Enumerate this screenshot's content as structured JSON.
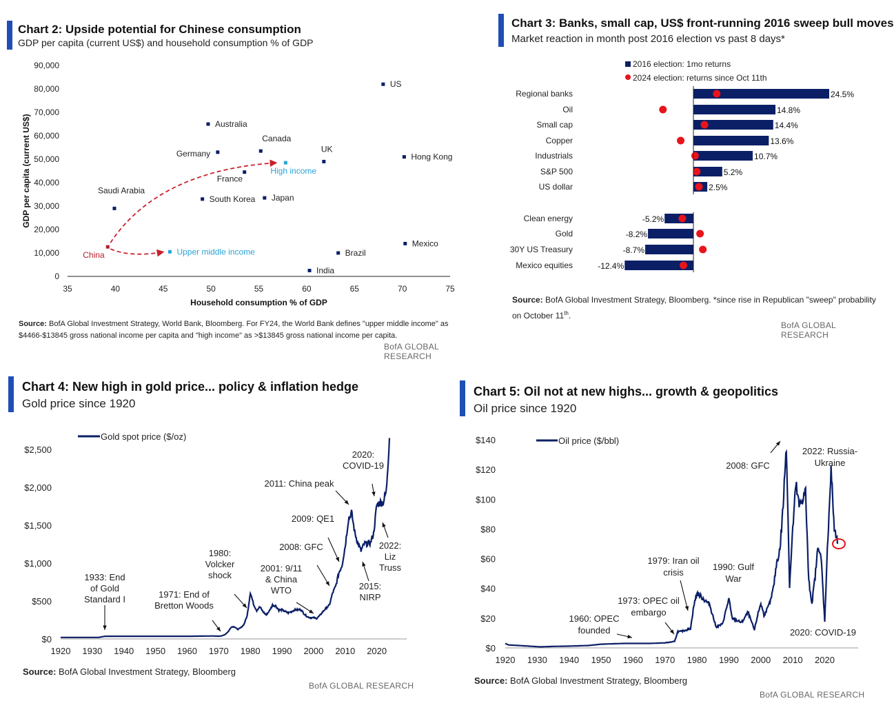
{
  "brand": "BofA GLOBAL RESEARCH",
  "colors": {
    "navy": "#0b1f66",
    "accent": "#1f4fb5",
    "red": "#e8141b",
    "china": "#b3202b",
    "income": "#2aa3d8",
    "dashed": "#c8202b"
  },
  "chart2": {
    "title": "Chart 2: Upside potential for Chinese consumption",
    "subtitle": "GDP per capita (current US$) and household consumption % of GDP",
    "source_label": "Source:",
    "source_text": " BofA Global Investment Strategy, World Bank, Bloomberg. For FY24, the World Bank defines \"upper middle income\" as $4466-$13845 gross national income per capita and \"high income\" as >$13845 gross national income per capita.",
    "chart_data": {
      "type": "scatter",
      "xlabel": "Household consumption % of GDP",
      "ylabel": "GDP per capita (current US$)",
      "xlim": [
        35,
        75
      ],
      "ylim": [
        0,
        90000
      ],
      "x_ticks": [
        "35",
        "40",
        "45",
        "50",
        "55",
        "60",
        "65",
        "70",
        "75"
      ],
      "y_ticks": [
        "0",
        "10,000",
        "20,000",
        "30,000",
        "40,000",
        "50,000",
        "60,000",
        "70,000",
        "80,000",
        "90,000"
      ],
      "points": [
        {
          "label": "US",
          "x": 68,
          "y": 82000
        },
        {
          "label": "Australia",
          "x": 49.7,
          "y": 65000
        },
        {
          "label": "Canada",
          "x": 55.2,
          "y": 53500
        },
        {
          "label": "Germany",
          "x": 50.7,
          "y": 53000
        },
        {
          "label": "UK",
          "x": 61.8,
          "y": 49000
        },
        {
          "label": "Hong Kong",
          "x": 70.2,
          "y": 51000
        },
        {
          "label": "France",
          "x": 53.5,
          "y": 44500
        },
        {
          "label": "Saudi Arabia",
          "x": 39.9,
          "y": 29000
        },
        {
          "label": "South Korea",
          "x": 49.1,
          "y": 33000
        },
        {
          "label": "Japan",
          "x": 55.6,
          "y": 33500
        },
        {
          "label": "Mexico",
          "x": 70.3,
          "y": 14000
        },
        {
          "label": "Brazil",
          "x": 63.3,
          "y": 10000
        },
        {
          "label": "India",
          "x": 60.3,
          "y": 2500
        },
        {
          "label": "China",
          "x": 39.2,
          "y": 12600,
          "color": "china"
        },
        {
          "label": "Upper middle income",
          "x": 45.7,
          "y": 10500,
          "color": "income"
        },
        {
          "label": "High income",
          "x": 57.8,
          "y": 48500,
          "color": "income"
        }
      ]
    }
  },
  "chart3": {
    "title": "Chart 3: Banks, small cap, US$ front-running 2016 sweep bull moves",
    "subtitle": "Market reaction in month post 2016 election vs past 8 days*",
    "source_label": "Source:",
    "source_text": " BofA Global Investment Strategy, Bloomberg. *since rise in Republican \"sweep\" probability on October 11",
    "source_sup": "th",
    "source_end": ".",
    "chart_data": {
      "type": "bar",
      "orientation": "horizontal",
      "xlim": [
        -12.4,
        24.5
      ],
      "categories": [
        "Regional banks",
        "Oil",
        "Small cap",
        "Copper",
        "Industrials",
        "S&P 500",
        "US dollar",
        "Clean energy",
        "Gold",
        "30Y US Treasury",
        "Mexico equities"
      ],
      "series": [
        {
          "name": "2016 election: 1mo returns",
          "values": [
            24.5,
            14.8,
            14.4,
            13.6,
            10.7,
            5.2,
            2.5,
            -5.2,
            -8.2,
            -8.7,
            -12.4
          ]
        },
        {
          "name": "2024 election: returns since Oct 11th",
          "values": [
            4.2,
            -5.5,
            2.0,
            -2.3,
            0.3,
            0.6,
            1.0,
            -2.0,
            1.2,
            1.7,
            -1.8
          ]
        }
      ],
      "value_labels": [
        "24.5%",
        "14.8%",
        "14.4%",
        "13.6%",
        "10.7%",
        "5.2%",
        "2.5%",
        "-5.2%",
        "-8.2%",
        "-8.7%",
        "-12.4%"
      ]
    }
  },
  "chart4": {
    "title": "Chart 4: New high in gold price... policy & inflation hedge",
    "subtitle": "Gold price since 1920",
    "source_label": "Source:",
    "source_text": " BofA Global Investment Strategy, Bloomberg",
    "chart_data": {
      "type": "line",
      "legend": "Gold spot price ($/oz)",
      "xlim": [
        1920,
        2024
      ],
      "ylim": [
        0,
        2700
      ],
      "x_ticks": [
        "1920",
        "1930",
        "1940",
        "1950",
        "1960",
        "1970",
        "1980",
        "1990",
        "2000",
        "2010",
        "2020"
      ],
      "y_ticks": [
        "$0",
        "$500",
        "$1,000",
        "$1,500",
        "$2,000",
        "$2,500"
      ],
      "series": [
        {
          "name": "Gold spot price ($/oz)",
          "x": [
            1920,
            1925,
            1932,
            1934,
            1940,
            1950,
            1960,
            1968,
            1970,
            1971,
            1972,
            1973,
            1974,
            1975,
            1976,
            1977,
            1978,
            1979,
            1980,
            1981,
            1982,
            1983,
            1984,
            1985,
            1986,
            1987,
            1988,
            1989,
            1990,
            1991,
            1992,
            1993,
            1994,
            1995,
            1996,
            1997,
            1998,
            1999,
            2000,
            2001,
            2002,
            2003,
            2004,
            2005,
            2006,
            2007,
            2008,
            2009,
            2010,
            2011,
            2012,
            2013,
            2014,
            2015,
            2016,
            2017,
            2018,
            2019,
            2020,
            2021,
            2022,
            2023,
            2024
          ],
          "y": [
            20,
            20,
            20,
            35,
            35,
            35,
            35,
            39,
            36,
            41,
            58,
            97,
            159,
            161,
            125,
            148,
            193,
            307,
            615,
            460,
            376,
            424,
            361,
            317,
            368,
            447,
            437,
            381,
            383,
            362,
            344,
            360,
            384,
            384,
            388,
            331,
            294,
            279,
            280,
            271,
            310,
            363,
            409,
            444,
            603,
            695,
            872,
            972,
            1224,
            1571,
            1669,
            1411,
            1266,
            1160,
            1251,
            1257,
            1268,
            1393,
            1770,
            1799,
            1800,
            1943,
            2650
          ]
        }
      ],
      "annotations": [
        {
          "year": "1933",
          "text": "1933: End of Gold Standard I"
        },
        {
          "year": "1971",
          "text": "1971: End of Bretton Woods"
        },
        {
          "year": "1980",
          "text": "1980: Volcker shock"
        },
        {
          "year": "2001",
          "text": "2001: 9/11 & China WTO"
        },
        {
          "year": "2008",
          "text": "2008: GFC"
        },
        {
          "year": "2009",
          "text": "2009: QE1"
        },
        {
          "year": "2011",
          "text": "2011: China peak"
        },
        {
          "year": "2015",
          "text": "2015: NIRP"
        },
        {
          "year": "2020",
          "text": "2020: COVID-19"
        },
        {
          "year": "2022",
          "text": "2022: Liz Truss"
        }
      ]
    }
  },
  "chart5": {
    "title": "Chart 5: Oil not at new highs... growth & geopolitics",
    "subtitle": "Oil price since 1920",
    "source_label": "Source:",
    "source_text": " BofA Global Investment Strategy, Bloomberg",
    "chart_data": {
      "type": "line",
      "legend": "Oil price ($/bbl)",
      "xlim": [
        1920,
        2024
      ],
      "ylim": [
        0,
        140
      ],
      "x_ticks": [
        "1920",
        "1930",
        "1940",
        "1950",
        "1960",
        "1970",
        "1980",
        "1990",
        "2000",
        "2010",
        "2020"
      ],
      "y_ticks": [
        "$0",
        "$20",
        "$40",
        "$60",
        "$80",
        "$100",
        "$120",
        "$140"
      ],
      "series": [
        {
          "name": "Oil price ($/bbl)",
          "x": [
            1920,
            1921,
            1925,
            1931,
            1935,
            1940,
            1946,
            1950,
            1957,
            1960,
            1965,
            1970,
            1973,
            1974,
            1975,
            1978,
            1979,
            1980,
            1981,
            1982,
            1984,
            1986,
            1988,
            1990,
            1991,
            1994,
            1996,
            1998,
            1999,
            2000,
            2001,
            2002,
            2003,
            2004,
            2005,
            2006,
            2007,
            2008,
            2009,
            2010,
            2011,
            2012,
            2013,
            2014,
            2015,
            2016,
            2017,
            2018,
            2019,
            2020,
            2021,
            2022,
            2023,
            2024
          ],
          "y": [
            3,
            2,
            1.5,
            0.7,
            1,
            1.2,
            1.6,
            2.5,
            3,
            3,
            3,
            3.4,
            4.3,
            11,
            11,
            13,
            28,
            37,
            35,
            33,
            29,
            14,
            16,
            33,
            20,
            17,
            24,
            12,
            22,
            30,
            22,
            26,
            31,
            41,
            58,
            66,
            96,
            138,
            42,
            80,
            110,
            95,
            100,
            105,
            45,
            30,
            48,
            70,
            57,
            18,
            75,
            120,
            80,
            70
          ]
        }
      ],
      "annotations": [
        {
          "year": "1960",
          "text": "1960: OPEC founded"
        },
        {
          "year": "1973",
          "text": "1973: OPEC oil embargo"
        },
        {
          "year": "1979",
          "text": "1979: Iran oil crisis"
        },
        {
          "year": "1990",
          "text": "1990: Gulf War"
        },
        {
          "year": "2008",
          "text": "2008: GFC"
        },
        {
          "year": "2020",
          "text": "2020: COVID-19"
        },
        {
          "year": "2022",
          "text": "2022: Russia-Ukraine"
        }
      ]
    }
  }
}
